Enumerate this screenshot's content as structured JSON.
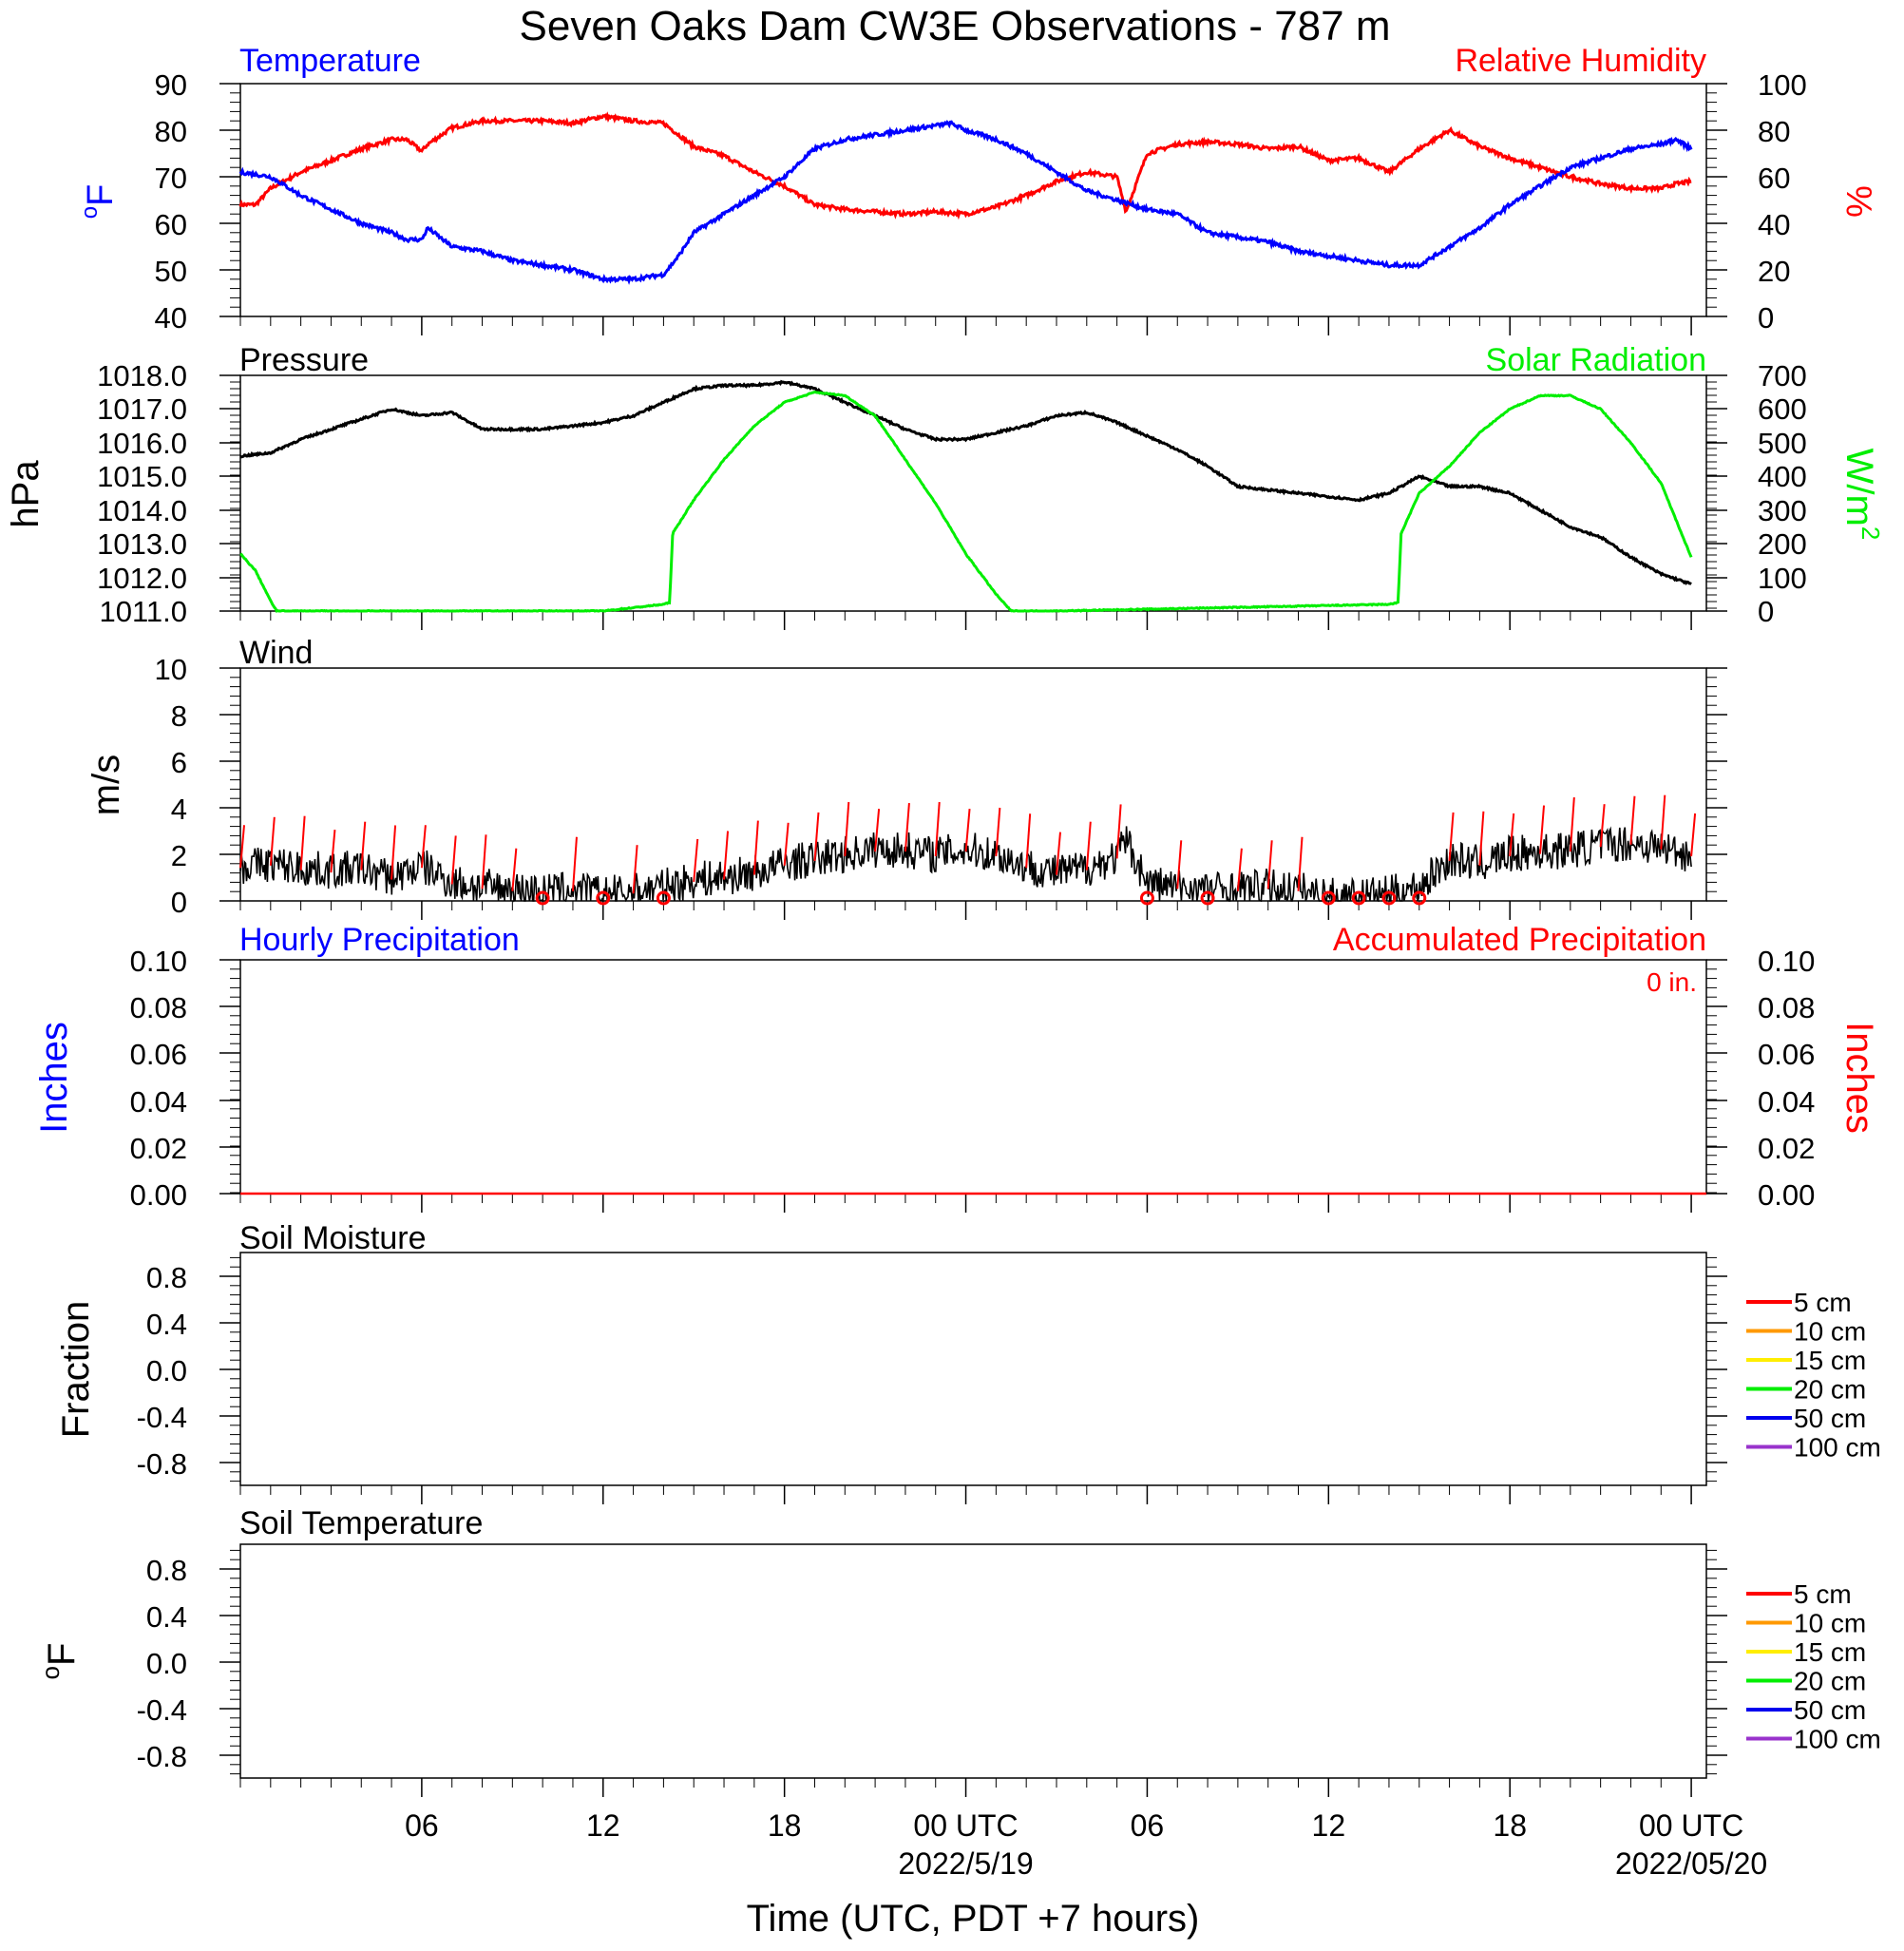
{
  "title": "Seven Oaks Dam CW3E Observations - 787 m",
  "xlabel": "Time (UTC, PDT +7 hours)",
  "x_ticks": [
    {
      "label": "06",
      "hour": 6
    },
    {
      "label": "12",
      "hour": 12
    },
    {
      "label": "18",
      "hour": 18
    },
    {
      "label": "00 UTC",
      "hour": 24,
      "date": "2022/5/19"
    },
    {
      "label": "06",
      "hour": 30
    },
    {
      "label": "12",
      "hour": 36
    },
    {
      "label": "18",
      "hour": 42
    },
    {
      "label": "00 UTC",
      "hour": 48,
      "date": "2022/05/20"
    }
  ],
  "colors": {
    "temperature": "#0000ff",
    "humidity": "#ff0000",
    "pressure": "#000000",
    "solar": "#00ee00",
    "wind": "#000000",
    "barb": "#ff0000",
    "hourly_precip": "#0000ff",
    "accum_precip": "#ff0000"
  },
  "panels": {
    "temperature": {
      "left_title": "Temperature",
      "right_title": "Relative Humidity",
      "left_unit": "oF",
      "right_unit": "%",
      "left_ticks": [
        "90",
        "80",
        "70",
        "60",
        "50",
        "40"
      ],
      "right_ticks": [
        "100",
        "80",
        "60",
        "40",
        "20",
        "0"
      ]
    },
    "pressure": {
      "left_title": "Pressure",
      "right_title": "Solar Radiation",
      "left_unit": "hPa",
      "right_unit": "W/m2",
      "left_ticks": [
        "1018.0",
        "1017.0",
        "1016.0",
        "1015.0",
        "1014.0",
        "1013.0",
        "1012.0",
        "1011.0"
      ],
      "right_ticks": [
        "700",
        "600",
        "500",
        "400",
        "300",
        "200",
        "100",
        "0"
      ]
    },
    "wind": {
      "left_title": "Wind",
      "left_unit": "m/s",
      "left_ticks": [
        "10",
        "8",
        "6",
        "4",
        "2",
        "0"
      ]
    },
    "precip": {
      "left_title": "Hourly Precipitation",
      "right_title": "Accumulated Precipitation",
      "total_label": "0 in.",
      "left_unit": "Inches",
      "right_unit": "Inches",
      "left_ticks": [
        "0.10",
        "0.08",
        "0.06",
        "0.04",
        "0.02",
        "0.00"
      ],
      "right_ticks": [
        "0.10",
        "0.08",
        "0.06",
        "0.04",
        "0.02",
        "0.00"
      ]
    },
    "soil_moisture": {
      "left_title": "Soil Moisture",
      "left_unit": "Fraction",
      "left_ticks": [
        "0.8",
        "0.4",
        "0.0",
        "-0.4",
        "-0.8"
      ]
    },
    "soil_temperature": {
      "left_title": "Soil Temperature",
      "left_unit": "oF",
      "left_ticks": [
        "0.8",
        "0.4",
        "0.0",
        "-0.4",
        "-0.8"
      ]
    }
  },
  "soil_legend": [
    {
      "label": "5 cm",
      "color": "#ff0000"
    },
    {
      "label": "10 cm",
      "color": "#ff9900"
    },
    {
      "label": "15 cm",
      "color": "#ffee00"
    },
    {
      "label": "20 cm",
      "color": "#00ee00"
    },
    {
      "label": "50 cm",
      "color": "#0000ee"
    },
    {
      "label": "100 cm",
      "color": "#9933cc"
    }
  ],
  "chart_data": [
    {
      "type": "line",
      "title": "Temperature",
      "x_unit": "hours since 2022-05-18 00 UTC",
      "ylabel": "oF",
      "ylim": [
        40,
        90
      ],
      "series": [
        {
          "name": "Temperature",
          "x": [
            0,
            1,
            2,
            3,
            4,
            5,
            5.5,
            6,
            6.2,
            7,
            8,
            9,
            10,
            11,
            12,
            13,
            14,
            14.5,
            15,
            16,
            17,
            18,
            19,
            20,
            21,
            22,
            23,
            23.5,
            24,
            25,
            26,
            27,
            28,
            29,
            30,
            31,
            32,
            33,
            34,
            35,
            36,
            37,
            38,
            39,
            40,
            41,
            42,
            43,
            44,
            45,
            46,
            47,
            47.5,
            48
          ],
          "values": [
            71,
            70,
            66,
            63,
            60,
            58,
            56.5,
            56.5,
            59,
            55,
            54,
            52,
            51,
            50,
            48,
            48,
            49,
            53,
            58,
            62,
            66,
            70,
            76,
            78,
            79,
            80,
            81,
            81.5,
            80,
            78,
            75,
            71,
            67,
            65,
            63,
            62,
            58,
            57,
            56,
            54,
            53,
            52,
            51,
            51,
            55,
            59,
            64,
            68,
            72,
            74,
            76,
            77,
            78,
            76
          ]
        }
      ]
    },
    {
      "type": "line",
      "title": "Relative Humidity",
      "ylabel": "%",
      "ylim": [
        0,
        100
      ],
      "series": [
        {
          "name": "Relative Humidity",
          "x": [
            0,
            0.5,
            1,
            2,
            3,
            4,
            5,
            5.5,
            6,
            6.2,
            7,
            8,
            9,
            10,
            11,
            12,
            12.5,
            13,
            14,
            15,
            16,
            17,
            18,
            19,
            20,
            21,
            22,
            23,
            24,
            25,
            26,
            27,
            28,
            29,
            29.3,
            30,
            31,
            32,
            33,
            34,
            35,
            36,
            37,
            38,
            39,
            40,
            41,
            42,
            43,
            44,
            45,
            46,
            47,
            47.5,
            48
          ],
          "values": [
            48,
            48,
            55,
            62,
            67,
            72,
            76,
            76,
            71,
            74,
            81,
            84,
            84,
            84,
            83,
            86,
            85,
            84,
            83,
            73,
            69,
            62,
            56,
            48,
            46,
            45,
            44,
            45,
            44,
            47,
            52,
            58,
            62,
            60,
            45,
            70,
            74,
            75,
            74,
            72,
            73,
            67,
            68,
            62,
            72,
            80,
            73,
            68,
            64,
            60,
            57,
            55,
            55,
            57,
            58
          ]
        }
      ]
    },
    {
      "type": "line",
      "title": "Pressure",
      "ylabel": "hPa",
      "ylim": [
        1011,
        1018
      ],
      "series": [
        {
          "name": "Pressure",
          "x": [
            0,
            1,
            2,
            3,
            4,
            5,
            6,
            7,
            8,
            9,
            10,
            11,
            12,
            13,
            14,
            15,
            16,
            17,
            18,
            19,
            20,
            21,
            22,
            23,
            24,
            25,
            26,
            27,
            28,
            29,
            30,
            31,
            32,
            33,
            34,
            35,
            36,
            37,
            38,
            39,
            40,
            41,
            42,
            43,
            44,
            45,
            46,
            47,
            48
          ],
          "values": [
            1015.6,
            1015.7,
            1016.1,
            1016.4,
            1016.7,
            1017.0,
            1016.8,
            1016.9,
            1016.4,
            1016.4,
            1016.4,
            1016.5,
            1016.6,
            1016.8,
            1017.2,
            1017.6,
            1017.7,
            1017.7,
            1017.8,
            1017.6,
            1017.2,
            1016.8,
            1016.4,
            1016.1,
            1016.1,
            1016.3,
            1016.5,
            1016.8,
            1016.9,
            1016.6,
            1016.2,
            1015.8,
            1015.3,
            1014.7,
            1014.6,
            1014.5,
            1014.4,
            1014.3,
            1014.5,
            1015.0,
            1014.7,
            1014.7,
            1014.5,
            1014.0,
            1013.5,
            1013.2,
            1012.6,
            1012.1,
            1011.8
          ]
        }
      ]
    },
    {
      "type": "line",
      "title": "Solar Radiation",
      "ylabel": "W/m2",
      "ylim": [
        0,
        700
      ],
      "series": [
        {
          "name": "Solar Radiation",
          "x": [
            0,
            0.5,
            1,
            1.2,
            12,
            13,
            14,
            14.2,
            14.3,
            15,
            16,
            17,
            18,
            19,
            20,
            21,
            22,
            23,
            24,
            25,
            25.5,
            26,
            27,
            38,
            38.3,
            38.4,
            39,
            40,
            41,
            42,
            43,
            44,
            45,
            46,
            47,
            48
          ],
          "values": [
            170,
            120,
            30,
            0,
            0,
            10,
            20,
            25,
            230,
            330,
            450,
            550,
            620,
            650,
            640,
            580,
            450,
            320,
            170,
            50,
            0,
            0,
            0,
            20,
            25,
            230,
            350,
            430,
            530,
            600,
            640,
            640,
            600,
            500,
            380,
            160
          ]
        }
      ]
    },
    {
      "type": "line",
      "title": "Wind",
      "ylabel": "m/s",
      "ylim": [
        0,
        10
      ],
      "series": [
        {
          "name": "Wind",
          "x": [
            0,
            1,
            2,
            3,
            4,
            5,
            6,
            7,
            8,
            9,
            10,
            11,
            12,
            13,
            14,
            15,
            16,
            17,
            18,
            19,
            20,
            21,
            22,
            23,
            24,
            25,
            26,
            27,
            28,
            29,
            29.3,
            30,
            31,
            32,
            33,
            34,
            35,
            36,
            37,
            38,
            39,
            40,
            41,
            42,
            43,
            44,
            45,
            46,
            47,
            48
          ],
          "values": [
            1.5,
            1.6,
            1.4,
            1.3,
            1.4,
            1.0,
            1.5,
            0.8,
            0.6,
            0.5,
            0.4,
            0.5,
            0.3,
            0.4,
            0.6,
            0.9,
            1.0,
            1.2,
            1.6,
            1.8,
            2.0,
            2.2,
            2.2,
            2.0,
            2.2,
            2.0,
            1.5,
            1.2,
            1.4,
            1.9,
            2.6,
            0.8,
            0.6,
            0.5,
            0.5,
            0.6,
            0.5,
            0.2,
            0.2,
            0.3,
            0.6,
            1.8,
            1.6,
            2.0,
            2.1,
            2.2,
            2.4,
            2.5,
            2.3,
            2.0
          ]
        }
      ],
      "calm_hours": [
        10,
        12,
        14,
        30,
        32,
        36,
        37,
        38,
        39
      ]
    },
    {
      "type": "line",
      "title": "Accumulated Precipitation",
      "ylabel": "Inches",
      "ylim": [
        0,
        0.1
      ],
      "series": [
        {
          "name": "Accumulated Precipitation",
          "x": [
            0,
            48
          ],
          "values": [
            0,
            0
          ]
        }
      ]
    }
  ]
}
